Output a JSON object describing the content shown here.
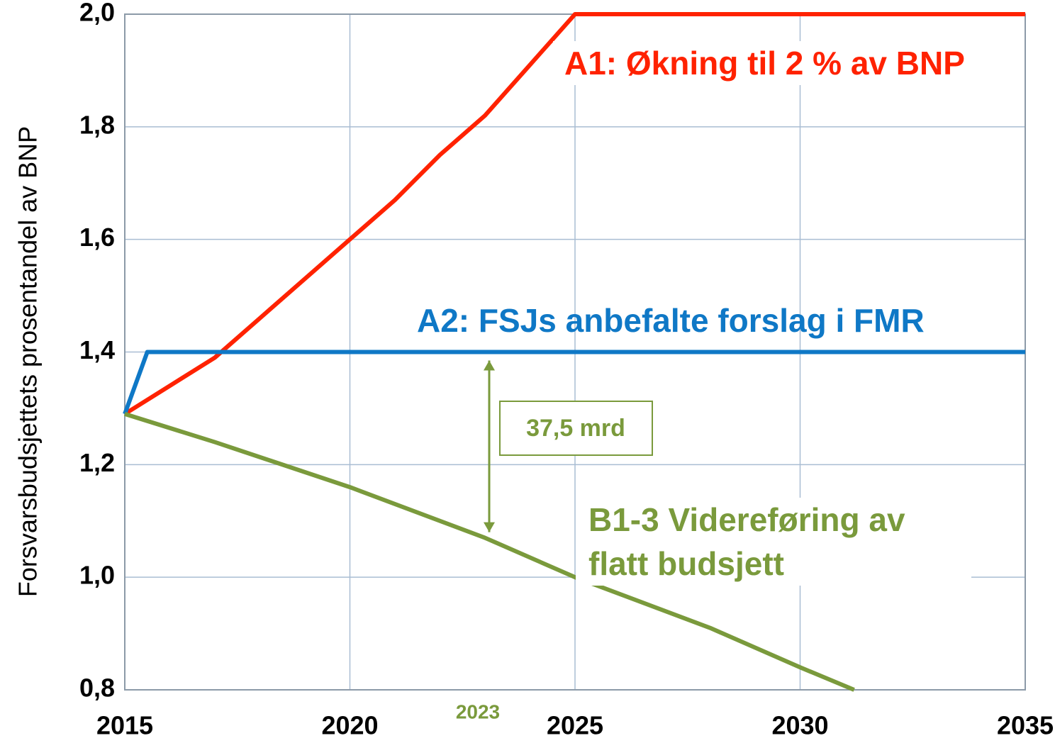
{
  "chart_data": {
    "type": "line",
    "y_label": "Forsvarsbudsjettets prosentandel av BNP",
    "xlim": [
      2015,
      2035
    ],
    "xticks": [
      2015,
      2020,
      2025,
      2030,
      2035
    ],
    "ylim": [
      0.8,
      2.0
    ],
    "yticks": [
      {
        "value": 0.8,
        "label": "0,8"
      },
      {
        "value": 1.0,
        "label": "1,0"
      },
      {
        "value": 1.2,
        "label": "1,2"
      },
      {
        "value": 1.4,
        "label": "1,4"
      },
      {
        "value": 1.6,
        "label": "1,6"
      },
      {
        "value": 1.8,
        "label": "1,8"
      },
      {
        "value": 2.0,
        "label": "2,0"
      }
    ],
    "grid": true,
    "series": [
      {
        "name": "A1: Økning til 2 % av BNP",
        "color": "#ff2200",
        "x": [
          2015,
          2016,
          2017,
          2018,
          2019,
          2020,
          2021,
          2022,
          2023,
          2024,
          2025,
          2035
        ],
        "values": [
          1.29,
          1.34,
          1.39,
          1.46,
          1.53,
          1.6,
          1.67,
          1.75,
          1.82,
          1.91,
          2.0,
          2.0
        ]
      },
      {
        "name": "A2: FSJs anbefalte forslag i FMR",
        "color": "#0f78c6",
        "x": [
          2015,
          2015.5,
          2035
        ],
        "values": [
          1.29,
          1.4,
          1.4
        ]
      },
      {
        "name": "B1-3 Videreføring av flatt budsjett",
        "color": "#7a9a3c",
        "x": [
          2015,
          2017,
          2020,
          2023,
          2025,
          2028,
          2030,
          2031.2
        ],
        "values": [
          1.29,
          1.24,
          1.16,
          1.07,
          1.0,
          0.91,
          0.84,
          0.8
        ]
      }
    ],
    "annotation": {
      "x": 2023,
      "from": 1.4,
      "to": 1.07,
      "text": "37,5 mrd"
    }
  }
}
